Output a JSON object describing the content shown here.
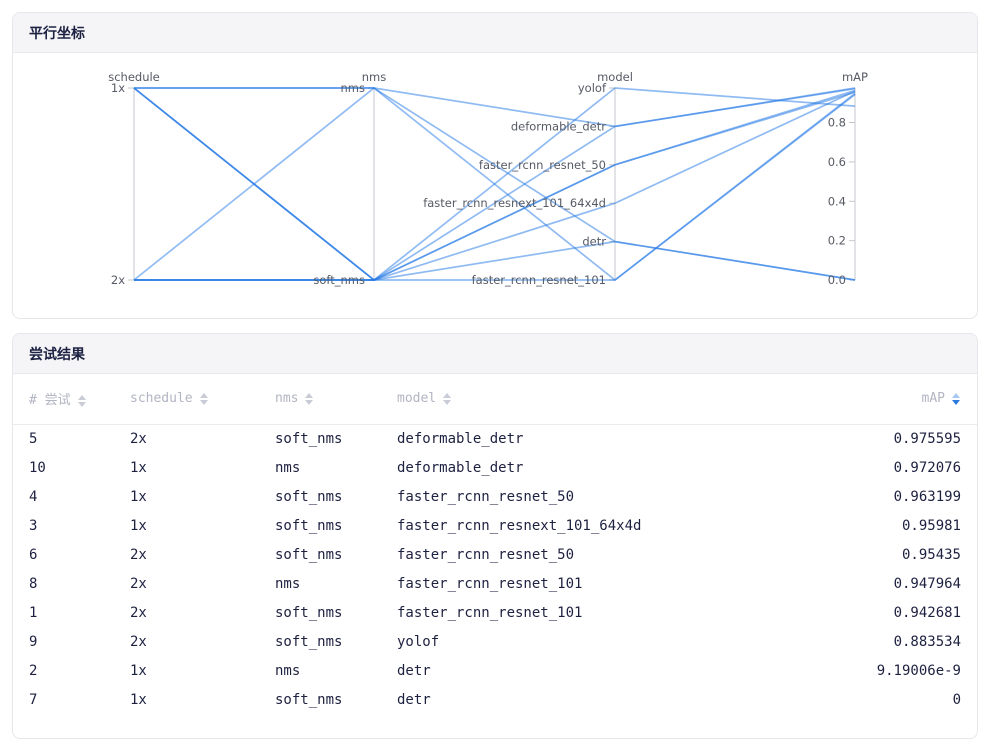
{
  "parallel_panel": {
    "title": "平行坐标"
  },
  "results_panel": {
    "title": "尝试结果"
  },
  "chart_data": {
    "type": "parallel-coordinates",
    "title": "平行坐标",
    "axes": [
      {
        "name": "schedule",
        "categories": [
          "1x",
          "2x"
        ]
      },
      {
        "name": "nms",
        "categories": [
          "nms",
          "soft_nms"
        ]
      },
      {
        "name": "model",
        "categories": [
          "yolof",
          "deformable_detr",
          "faster_rcnn_resnet_50",
          "faster_rcnn_resnext_101_64x4d",
          "detr",
          "faster_rcnn_resnet_101"
        ]
      },
      {
        "name": "mAP",
        "range": [
          0,
          0.975595
        ],
        "ticks": [
          0.0,
          0.2,
          0.4,
          0.6,
          0.8
        ],
        "tick_labels": [
          "0.0",
          "0.2",
          "0.4",
          "0.6",
          "0.8"
        ]
      }
    ],
    "trials": [
      {
        "schedule": "2x",
        "nms": "soft_nms",
        "model": "deformable_detr",
        "mAP": 0.975595
      },
      {
        "schedule": "1x",
        "nms": "nms",
        "model": "deformable_detr",
        "mAP": 0.972076
      },
      {
        "schedule": "1x",
        "nms": "soft_nms",
        "model": "faster_rcnn_resnet_50",
        "mAP": 0.963199
      },
      {
        "schedule": "1x",
        "nms": "soft_nms",
        "model": "faster_rcnn_resnext_101_64x4d",
        "mAP": 0.95981
      },
      {
        "schedule": "2x",
        "nms": "soft_nms",
        "model": "faster_rcnn_resnet_50",
        "mAP": 0.95435
      },
      {
        "schedule": "2x",
        "nms": "nms",
        "model": "faster_rcnn_resnet_101",
        "mAP": 0.947964
      },
      {
        "schedule": "2x",
        "nms": "soft_nms",
        "model": "faster_rcnn_resnet_101",
        "mAP": 0.942681
      },
      {
        "schedule": "2x",
        "nms": "soft_nms",
        "model": "yolof",
        "mAP": 0.883534
      },
      {
        "schedule": "1x",
        "nms": "nms",
        "model": "detr",
        "mAP": 9.19006e-09
      },
      {
        "schedule": "1x",
        "nms": "soft_nms",
        "model": "detr",
        "mAP": 0
      }
    ],
    "style": {
      "line_color": "#2178e6",
      "line_opacity": 0.5,
      "axis_color": "#c6c7cc",
      "label_color": "#565a64"
    }
  },
  "table": {
    "columns": [
      {
        "key": "trial_number",
        "label": "# 尝试",
        "align": "left",
        "sort": "none"
      },
      {
        "key": "schedule",
        "label": "schedule",
        "align": "left",
        "sort": "none"
      },
      {
        "key": "nms",
        "label": "nms",
        "align": "left",
        "sort": "none"
      },
      {
        "key": "model",
        "label": "model",
        "align": "left",
        "sort": "none"
      },
      {
        "key": "map",
        "label": "mAP",
        "align": "right",
        "sort": "desc"
      }
    ],
    "sort_colors": {
      "inactive": "#c9ccd7",
      "active_up": "#a6c8f2",
      "active_down": "#2a7ae2"
    },
    "rows": [
      {
        "trial_number": "5",
        "schedule": "2x",
        "nms": "soft_nms",
        "model": "deformable_detr",
        "map": "0.975595"
      },
      {
        "trial_number": "10",
        "schedule": "1x",
        "nms": "nms",
        "model": "deformable_detr",
        "map": "0.972076"
      },
      {
        "trial_number": "4",
        "schedule": "1x",
        "nms": "soft_nms",
        "model": "faster_rcnn_resnet_50",
        "map": "0.963199"
      },
      {
        "trial_number": "3",
        "schedule": "1x",
        "nms": "soft_nms",
        "model": "faster_rcnn_resnext_101_64x4d",
        "map": "0.95981"
      },
      {
        "trial_number": "6",
        "schedule": "2x",
        "nms": "soft_nms",
        "model": "faster_rcnn_resnet_50",
        "map": "0.95435"
      },
      {
        "trial_number": "8",
        "schedule": "2x",
        "nms": "nms",
        "model": "faster_rcnn_resnet_101",
        "map": "0.947964"
      },
      {
        "trial_number": "1",
        "schedule": "2x",
        "nms": "soft_nms",
        "model": "faster_rcnn_resnet_101",
        "map": "0.942681"
      },
      {
        "trial_number": "9",
        "schedule": "2x",
        "nms": "soft_nms",
        "model": "yolof",
        "map": "0.883534"
      },
      {
        "trial_number": "2",
        "schedule": "1x",
        "nms": "nms",
        "model": "detr",
        "map": "9.19006e-9"
      },
      {
        "trial_number": "7",
        "schedule": "1x",
        "nms": "soft_nms",
        "model": "detr",
        "map": "0"
      }
    ]
  }
}
